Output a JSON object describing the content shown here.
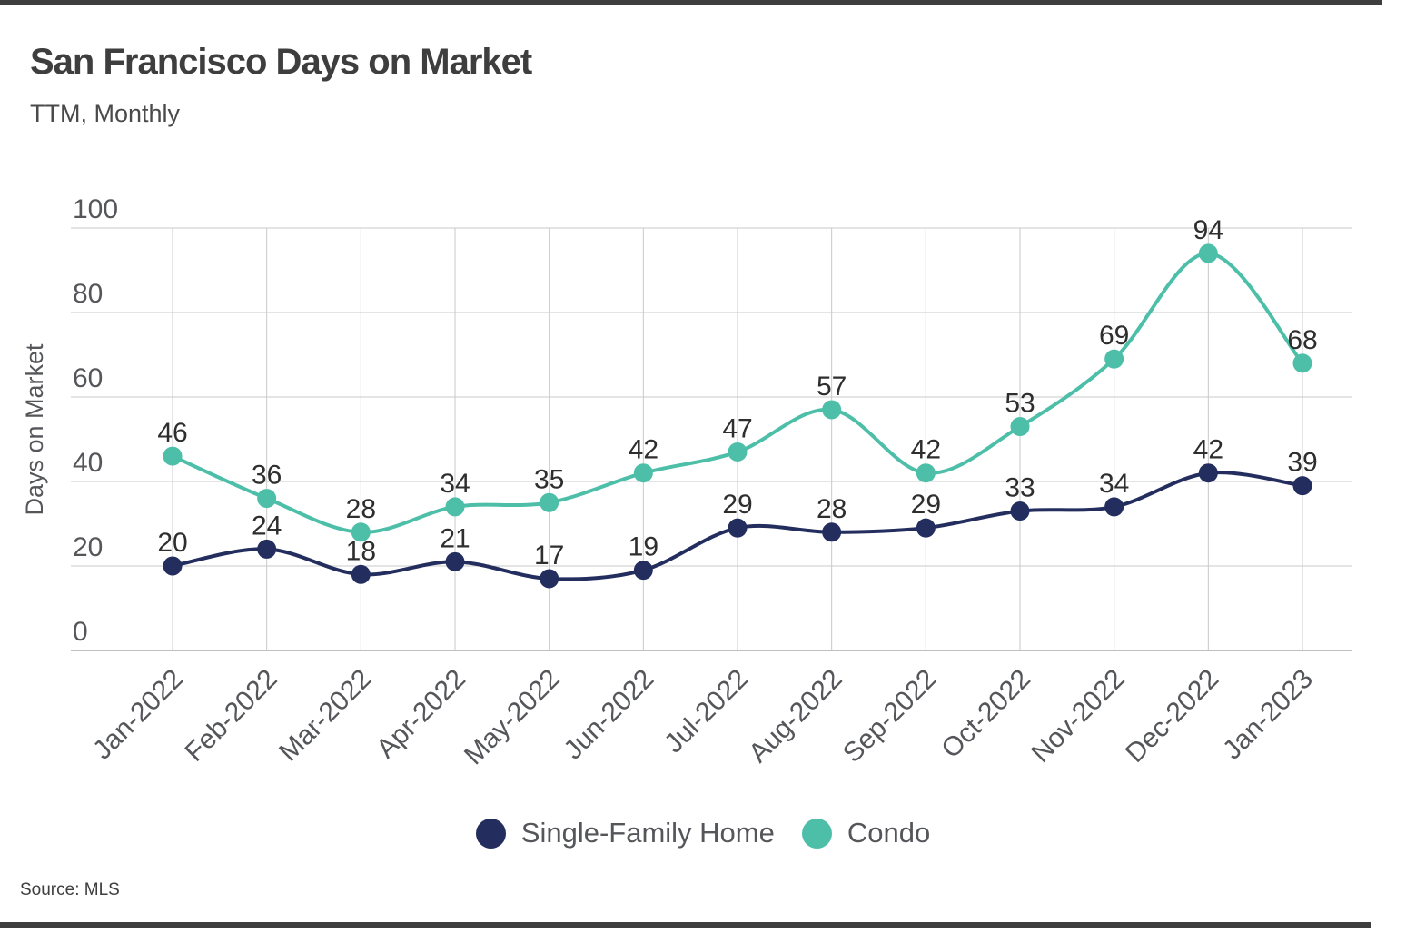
{
  "chart_data": {
    "type": "line",
    "title": "San Francisco Days on Market",
    "subtitle": "TTM, Monthly",
    "ylabel": "Days on Market",
    "xlabel": "",
    "ylim": [
      0,
      100
    ],
    "yticks": [
      0,
      20,
      40,
      60,
      80,
      100
    ],
    "grid": true,
    "legend_position": "bottom",
    "smooth_lines": true,
    "point_labels": true,
    "source": "Source: MLS",
    "categories": [
      "Jan-2022",
      "Feb-2022",
      "Mar-2022",
      "Apr-2022",
      "May-2022",
      "Jun-2022",
      "Jul-2022",
      "Aug-2022",
      "Sep-2022",
      "Oct-2022",
      "Nov-2022",
      "Dec-2022",
      "Jan-2023"
    ],
    "series": [
      {
        "name": "Single-Family Home",
        "color": "#232e5f",
        "values": [
          20,
          24,
          18,
          21,
          17,
          19,
          29,
          28,
          29,
          33,
          34,
          42,
          39
        ]
      },
      {
        "name": "Condo",
        "color": "#4dbfa8",
        "values": [
          46,
          36,
          28,
          34,
          35,
          42,
          47,
          57,
          42,
          53,
          69,
          94,
          68
        ]
      }
    ],
    "colors": {
      "grid": "#c9c9c9",
      "axis_line": "#ababab",
      "tick_text": "#55565a",
      "value_label_text": "#2e2e2e",
      "title_text": "#3e3e3e",
      "subtitle_text": "#4a4a4a",
      "border_bar": "#3e3e3e",
      "background": "#ffffff"
    }
  }
}
